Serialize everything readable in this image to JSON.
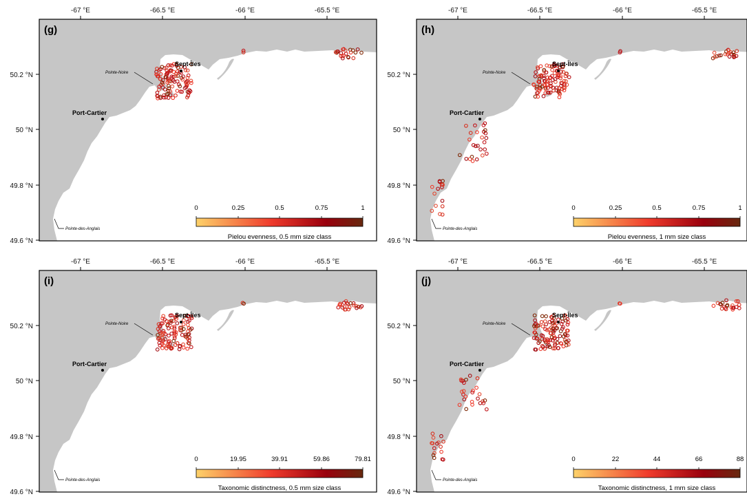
{
  "figure": {
    "lon_ticks": [
      "-67 °E",
      "-66.5 °E",
      "-66 °E",
      "-65.5 °E"
    ],
    "lat_ticks": [
      "50.2 °N",
      "50 °N",
      "49.8 °N",
      "49.6 °N"
    ],
    "lon_values": [
      -67,
      -66.5,
      -66,
      -65.5
    ],
    "lat_values": [
      50.2,
      50.0,
      49.8,
      49.6
    ],
    "places": {
      "sept_iles": "Sept-Îles",
      "port_cartier": "Port-Cartier",
      "pointe_noire": "Pointe-Noire",
      "pointe_des_anglais": "Pointe-des-Anglais"
    },
    "colors": {
      "land": "#c6c6c6",
      "water": "#ffffff",
      "scale_low": "#fdd26a",
      "scale_mid": "#ef3b2c",
      "scale_high": "#99000d",
      "scale_max": "#67290f"
    }
  },
  "panels": [
    {
      "letter": "(g)",
      "colorbar": {
        "title": "Pielou evenness, 0.5 mm size class",
        "ticks": [
          "0",
          "0.25",
          "0.5",
          "0.75",
          "1"
        ],
        "min": 0,
        "max": 1
      },
      "includes_southwest_stations": false
    },
    {
      "letter": "(h)",
      "colorbar": {
        "title": "Pielou evenness, 1 mm size class",
        "ticks": [
          "0",
          "0.25",
          "0.5",
          "0.75",
          "1"
        ],
        "min": 0,
        "max": 1
      },
      "includes_southwest_stations": true
    },
    {
      "letter": "(i)",
      "colorbar": {
        "title": "Taxonomic distinctness, 0.5 mm size class",
        "ticks": [
          "0",
          "19.95",
          "39.91",
          "59.86",
          "79.81"
        ],
        "min": 0,
        "max": 79.81
      },
      "includes_southwest_stations": false
    },
    {
      "letter": "(j)",
      "colorbar": {
        "title": "Taxonomic distinctness, 1 mm size class",
        "ticks": [
          "0",
          "22",
          "44",
          "66",
          "88"
        ],
        "min": 0,
        "max": 88
      },
      "includes_southwest_stations": true
    }
  ]
}
